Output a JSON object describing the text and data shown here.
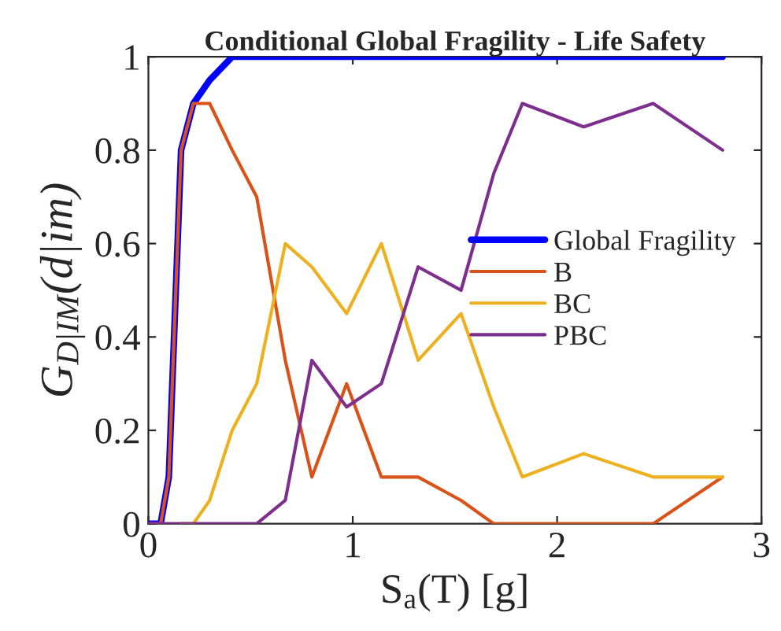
{
  "chart_data": {
    "type": "line",
    "title": "Conditional Global Fragility - Life Safety",
    "xlabel": "S$_{a}$(T) [g]",
    "ylabel": "G$_{D|IM}$(d|im)",
    "x": [
      0,
      0.06,
      0.1,
      0.16,
      0.22,
      0.3,
      0.41,
      0.53,
      0.67,
      0.8,
      0.97,
      1.14,
      1.32,
      1.53,
      1.69,
      1.83,
      2.13,
      2.47,
      2.81
    ],
    "series": [
      {
        "name": "Global Fragility",
        "color": "#0000ff",
        "values": [
          0,
          0,
          0.1,
          0.8,
          0.9,
          0.95,
          1,
          1,
          1,
          1,
          1,
          1,
          1,
          1,
          1,
          1,
          1,
          1,
          1
        ]
      },
      {
        "name": "B",
        "color": "#d95319",
        "values": [
          0,
          0,
          0.1,
          0.8,
          0.9,
          0.9,
          0.8,
          0.7,
          0.35,
          0.1,
          0.3,
          0.1,
          0.1,
          0.05,
          0,
          0,
          0,
          0,
          0.1
        ]
      },
      {
        "name": "BC",
        "color": "#edb120",
        "values": [
          null,
          null,
          null,
          0,
          0,
          0.05,
          0.2,
          0.3,
          0.6,
          0.55,
          0.45,
          0.6,
          0.35,
          0.45,
          0.25,
          0.1,
          0.15,
          0.1,
          0.1
        ]
      },
      {
        "name": "PBC",
        "color": "#7e2f8e",
        "values": [
          0,
          0,
          0,
          0,
          0,
          0,
          0,
          0,
          0.05,
          0.35,
          0.25,
          0.3,
          0.55,
          0.5,
          0.75,
          0.9,
          0.85,
          0.9,
          0.8
        ]
      }
    ],
    "xlim": [
      0,
      3
    ],
    "xticks": [
      0,
      1,
      2,
      3
    ],
    "ylim": [
      0,
      1
    ],
    "yticks": [
      0,
      0.2,
      0.4,
      0.6,
      0.8,
      1
    ],
    "legend": "right",
    "grid": false
  }
}
